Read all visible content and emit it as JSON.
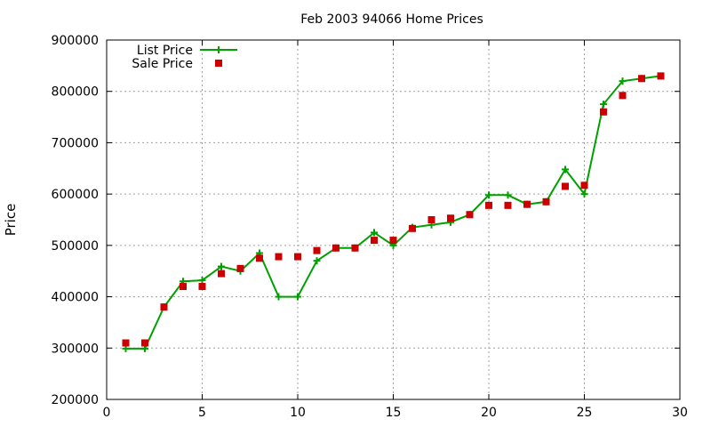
{
  "chart_data": {
    "type": "line",
    "title": "Feb 2003 94066 Home Prices",
    "xlabel": "",
    "ylabel": "Price",
    "xlim": [
      0,
      30
    ],
    "ylim": [
      200000,
      900000
    ],
    "xticks": [
      "0",
      "5",
      "10",
      "15",
      "20",
      "25",
      "30"
    ],
    "yticks": [
      "200000",
      "300000",
      "400000",
      "500000",
      "600000",
      "700000",
      "800000",
      "900000"
    ],
    "xtick_values": [
      0,
      5,
      10,
      15,
      20,
      25,
      30
    ],
    "ytick_values": [
      200000,
      300000,
      400000,
      500000,
      600000,
      700000,
      800000,
      900000
    ],
    "grid": true,
    "legend_position": "top-left",
    "series": [
      {
        "name": "List Price",
        "style": "lines+crosses",
        "color": "#00a000",
        "x": [
          1,
          2,
          3,
          4,
          5,
          6,
          7,
          8,
          9,
          10,
          11,
          12,
          13,
          14,
          15,
          16,
          17,
          18,
          19,
          20,
          21,
          22,
          23,
          24,
          25,
          26,
          27,
          28,
          29
        ],
        "y": [
          299000,
          299000,
          380000,
          430000,
          432000,
          459000,
          450000,
          485000,
          400000,
          400000,
          470000,
          495000,
          495000,
          525000,
          500000,
          535000,
          540000,
          545000,
          560000,
          598000,
          598000,
          580000,
          585000,
          648000,
          600000,
          775000,
          820000,
          825000,
          830000
        ]
      },
      {
        "name": "Sale Price",
        "style": "squares",
        "color": "#cc0000",
        "x": [
          1,
          2,
          3,
          4,
          5,
          6,
          7,
          8,
          9,
          10,
          11,
          12,
          13,
          14,
          15,
          16,
          17,
          18,
          19,
          20,
          21,
          22,
          23,
          24,
          25,
          26,
          27,
          28,
          29
        ],
        "y": [
          310000,
          310000,
          380000,
          420000,
          420000,
          445000,
          455000,
          475000,
          478000,
          478000,
          490000,
          495000,
          495000,
          510000,
          510000,
          533000,
          550000,
          553000,
          560000,
          578000,
          578000,
          580000,
          585000,
          615000,
          617000,
          760000,
          792000,
          825000,
          830000
        ]
      }
    ]
  }
}
